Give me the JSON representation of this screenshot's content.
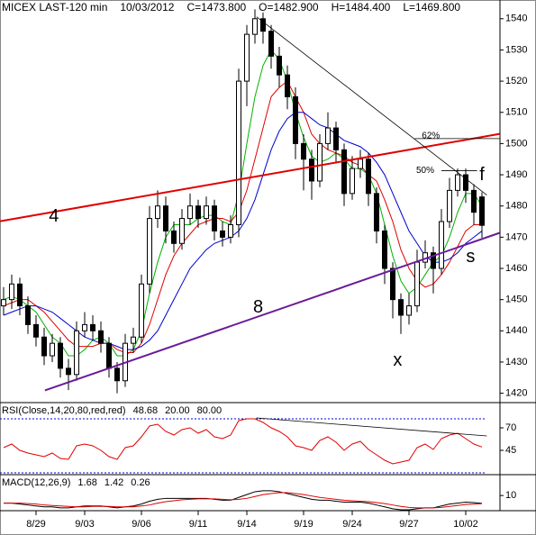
{
  "chart_data": [
    {
      "type": "candlestick",
      "header": [
        "MICEX LAST-120 min",
        "10/03/2012",
        "C=1473.800",
        "O=1482.900",
        "H=1484.400",
        "L=1469.800"
      ],
      "categories": [
        null,
        null,
        null,
        null,
        "8/29",
        null,
        null,
        null,
        null,
        null,
        "9/03",
        null,
        null,
        null,
        null,
        null,
        null,
        "9/06",
        null,
        null,
        null,
        null,
        null,
        null,
        "9/11",
        null,
        null,
        null,
        null,
        null,
        "9/14",
        null,
        null,
        null,
        null,
        null,
        null,
        "9/19",
        null,
        null,
        null,
        null,
        null,
        "9/24",
        null,
        null,
        null,
        null,
        null,
        null,
        "9/27",
        null,
        null,
        null,
        null,
        null,
        null,
        "10/02",
        null,
        null
      ],
      "candles": [
        [
          1448,
          1454,
          1445,
          1450
        ],
        [
          1450,
          1458,
          1447,
          1455
        ],
        [
          1455,
          1457,
          1445,
          1448
        ],
        [
          1448,
          1451,
          1439,
          1442
        ],
        [
          1442,
          1445,
          1435,
          1438
        ],
        [
          1438,
          1441,
          1429,
          1432
        ],
        [
          1432,
          1439,
          1430,
          1436
        ],
        [
          1436,
          1438,
          1425,
          1428
        ],
        [
          1428,
          1431,
          1421,
          1426
        ],
        [
          1426,
          1443,
          1424,
          1440
        ],
        [
          1440,
          1446,
          1438,
          1442
        ],
        [
          1442,
          1445,
          1437,
          1440
        ],
        [
          1440,
          1443,
          1433,
          1436
        ],
        [
          1436,
          1438,
          1425,
          1428
        ],
        [
          1428,
          1430,
          1420,
          1424
        ],
        [
          1424,
          1439,
          1422,
          1436
        ],
        [
          1436,
          1441,
          1433,
          1438
        ],
        [
          1438,
          1458,
          1436,
          1455
        ],
        [
          1455,
          1480,
          1452,
          1476
        ],
        [
          1476,
          1485,
          1473,
          1480
        ],
        [
          1480,
          1483,
          1468,
          1472
        ],
        [
          1472,
          1475,
          1465,
          1468
        ],
        [
          1468,
          1479,
          1466,
          1476
        ],
        [
          1476,
          1484,
          1474,
          1480
        ],
        [
          1480,
          1482,
          1473,
          1476
        ],
        [
          1476,
          1483,
          1474,
          1480
        ],
        [
          1480,
          1482,
          1469,
          1472
        ],
        [
          1472,
          1475,
          1467,
          1470
        ],
        [
          1470,
          1477,
          1468,
          1474
        ],
        [
          1474,
          1524,
          1470,
          1520
        ],
        [
          1520,
          1538,
          1512,
          1535
        ],
        [
          1535,
          1543,
          1532,
          1540
        ],
        [
          1540,
          1542,
          1532,
          1536
        ],
        [
          1536,
          1538,
          1524,
          1528
        ],
        [
          1528,
          1531,
          1518,
          1522
        ],
        [
          1522,
          1525,
          1511,
          1515
        ],
        [
          1515,
          1518,
          1495,
          1500
        ],
        [
          1500,
          1503,
          1485,
          1495
        ],
        [
          1495,
          1498,
          1482,
          1488
        ],
        [
          1488,
          1503,
          1486,
          1500
        ],
        [
          1500,
          1510,
          1498,
          1505
        ],
        [
          1505,
          1507,
          1494,
          1498
        ],
        [
          1498,
          1500,
          1480,
          1484
        ],
        [
          1484,
          1496,
          1482,
          1492
        ],
        [
          1492,
          1498,
          1489,
          1495
        ],
        [
          1495,
          1497,
          1480,
          1484
        ],
        [
          1484,
          1486,
          1468,
          1472
        ],
        [
          1472,
          1474,
          1455,
          1460
        ],
        [
          1460,
          1462,
          1444,
          1450
        ],
        [
          1450,
          1452,
          1439,
          1445
        ],
        [
          1445,
          1452,
          1442,
          1448
        ],
        [
          1448,
          1466,
          1446,
          1462
        ],
        [
          1462,
          1469,
          1460,
          1465
        ],
        [
          1465,
          1467,
          1452,
          1460
        ],
        [
          1460,
          1479,
          1458,
          1475
        ],
        [
          1475,
          1489,
          1473,
          1485
        ],
        [
          1485,
          1492,
          1483,
          1490
        ],
        [
          1490,
          1492,
          1481,
          1485
        ],
        [
          1485,
          1487,
          1474,
          1478
        ],
        [
          1482.9,
          1484.4,
          1469.8,
          1473.8
        ]
      ],
      "candle_color": "#000000",
      "series": [
        {
          "color": "#00b000",
          "values": [
            1450,
            1451,
            1450,
            1448,
            1446,
            1442,
            1438,
            1436,
            1432,
            1432,
            1434,
            1437,
            1438,
            1436,
            1432,
            1432,
            1434,
            1440,
            1452,
            1462,
            1470,
            1474,
            1474,
            1474,
            1476,
            1477,
            1477,
            1475,
            1474,
            1484,
            1500,
            1515,
            1525,
            1530,
            1527,
            1520,
            1510,
            1502,
            1496,
            1494,
            1495,
            1497,
            1495,
            1492,
            1492,
            1490,
            1484,
            1474,
            1464,
            1456,
            1452,
            1454,
            1458,
            1462,
            1464,
            1470,
            1478,
            1484,
            1484,
            1480
          ]
        },
        {
          "color": "#e00000",
          "values": [
            1448,
            1449,
            1450,
            1450,
            1448,
            1446,
            1443,
            1440,
            1437,
            1435,
            1435,
            1435,
            1436,
            1436,
            1434,
            1433,
            1433,
            1436,
            1442,
            1450,
            1458,
            1464,
            1468,
            1471,
            1474,
            1475,
            1476,
            1476,
            1475,
            1478,
            1485,
            1495,
            1505,
            1515,
            1518,
            1520,
            1515,
            1510,
            1503,
            1500,
            1498,
            1497,
            1496,
            1494,
            1493,
            1490,
            1488,
            1482,
            1475,
            1466,
            1460,
            1456,
            1454,
            1455,
            1458,
            1462,
            1467,
            1472,
            1474,
            1474
          ]
        },
        {
          "color": "#0000d0",
          "values": [
            1445,
            1446,
            1447,
            1448,
            1448,
            1447,
            1446,
            1444,
            1442,
            1440,
            1438,
            1437,
            1436,
            1436,
            1435,
            1434,
            1434,
            1435,
            1437,
            1440,
            1445,
            1450,
            1455,
            1460,
            1463,
            1466,
            1468,
            1469,
            1470,
            1472,
            1476,
            1482,
            1490,
            1498,
            1504,
            1508,
            1510,
            1510,
            1508,
            1506,
            1505,
            1503,
            1501,
            1500,
            1499,
            1497,
            1494,
            1490,
            1484,
            1478,
            1472,
            1468,
            1464,
            1462,
            1462,
            1463,
            1465,
            1468,
            1470,
            1472
          ]
        }
      ],
      "lines": [
        {
          "color": "#e00000",
          "x": [
            -0.44,
            61.2
          ],
          "y": [
            1475.1,
            1503.1
          ],
          "width": 2
        },
        {
          "color": "#6a1b9a",
          "x": [
            5.1,
            61.2
          ],
          "y": [
            1420.9,
            1471.4
          ],
          "width": 2
        },
        {
          "color": "#000000",
          "x": [
            31.2,
            59.6
          ],
          "y": [
            1540.6,
            1483.5
          ],
          "width": 0.8
        },
        {
          "color": "#000000",
          "x": [
            50.7,
            61.2
          ],
          "y": [
            1501.6,
            1501.6
          ],
          "width": 0.8
        },
        {
          "color": "#000000",
          "x": [
            54,
            58.4
          ],
          "y": [
            1491.3,
            1491.3
          ],
          "width": 0.8
        }
      ],
      "annotations": [
        {
          "text": "4",
          "x": 6.2,
          "y": 1476.5,
          "color": "#e00000",
          "size": "big"
        },
        {
          "text": "8",
          "x": 31.4,
          "y": 1447.4,
          "color": "#6a1b9a",
          "size": "big"
        },
        {
          "text": "x",
          "x": 48.6,
          "y": 1430.4,
          "color": "#e00000",
          "size": "big"
        },
        {
          "text": "f",
          "x": 59,
          "y": 1489.8,
          "color": "#e00000",
          "size": "big"
        },
        {
          "text": "s",
          "x": 57.6,
          "y": 1463.6,
          "color": "#e00000",
          "size": "big"
        },
        {
          "text": "62%",
          "x": 52.7,
          "y": 1502.5,
          "color": "#000000",
          "size": "small"
        },
        {
          "text": "50%",
          "x": 52,
          "y": 1491.3,
          "color": "#000000",
          "size": "small"
        }
      ],
      "ylim": [
        1417,
        1546
      ],
      "yticks": [
        1420,
        1430,
        1440,
        1450,
        1460,
        1470,
        1480,
        1490,
        1500,
        1510,
        1520,
        1530,
        1540
      ]
    },
    {
      "type": "line",
      "title": "RSI(Close,14,20,80,red,red)",
      "series": [
        {
          "color": "#e00000",
          "values": [
            48,
            52,
            45,
            42,
            40,
            38,
            42,
            36,
            35,
            50,
            52,
            50,
            45,
            38,
            35,
            48,
            50,
            60,
            72,
            74,
            66,
            62,
            68,
            70,
            64,
            68,
            60,
            58,
            62,
            78,
            80,
            80,
            76,
            70,
            66,
            60,
            50,
            48,
            45,
            56,
            60,
            54,
            45,
            52,
            55,
            46,
            40,
            34,
            30,
            32,
            34,
            48,
            52,
            46,
            58,
            62,
            64,
            58,
            52,
            48.68
          ]
        }
      ],
      "ref_lines": [
        {
          "value": 20,
          "label": "20.00"
        },
        {
          "value": 80,
          "label": "80.00"
        }
      ],
      "ref_color": "#0000d0",
      "lines": [
        {
          "color": "#000000",
          "x": [
            31.2,
            59.6
          ],
          "y": [
            81,
            61
          ],
          "width": 0.8
        }
      ],
      "ylim": [
        18,
        98
      ],
      "yticks": [
        45,
        70
      ]
    },
    {
      "type": "line",
      "title": "MACD(12,26,9)",
      "series": [
        {
          "color": "#000000",
          "values": [
            2,
            2,
            1,
            0,
            -1,
            -2,
            -2,
            -3,
            -3,
            -2,
            -1,
            -1,
            -1,
            -2,
            -3,
            -2,
            -1,
            1,
            4,
            6,
            7,
            7,
            7,
            7,
            7,
            7,
            6,
            5,
            5,
            8,
            11,
            14,
            15,
            15,
            14,
            12,
            10,
            8,
            6,
            5,
            5,
            4,
            3,
            3,
            3,
            2,
            0,
            -2,
            -4,
            -5,
            -5,
            -4,
            -3,
            -3,
            -1,
            1,
            2,
            3,
            2.5,
            1.68
          ]
        },
        {
          "color": "#e00000",
          "values": [
            2,
            2,
            2,
            1.5,
            1,
            0,
            -0.5,
            -1,
            -1.5,
            -2,
            -2,
            -1.5,
            -1.5,
            -1.5,
            -2,
            -2,
            -2,
            -1,
            0,
            2,
            3.5,
            4.5,
            5.5,
            6,
            6.5,
            6.5,
            6.5,
            6,
            5.5,
            6,
            7,
            9,
            11,
            12,
            13,
            13,
            12,
            11,
            9.5,
            8,
            7,
            6,
            5,
            4.5,
            4,
            3.5,
            2.5,
            1.5,
            0,
            -1.5,
            -2.5,
            -3,
            -3,
            -3,
            -2.5,
            -1.5,
            -0.5,
            0.5,
            1,
            1.42
          ]
        }
      ],
      "histogram_value": 0.26,
      "ylim": [
        -6,
        32
      ],
      "yticks": [
        10
      ]
    }
  ]
}
